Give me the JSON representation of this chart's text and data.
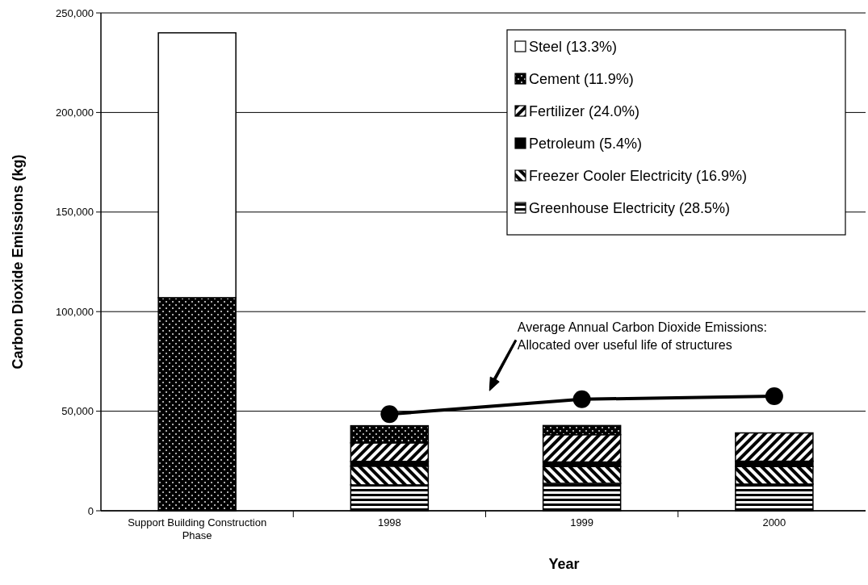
{
  "chart_data": {
    "type": "bar",
    "stacked": true,
    "xlabel": "Year",
    "ylabel": "Carbon Dioxide Emissions (kg)",
    "categories": [
      "Support Building Construction Phase",
      "1998",
      "1999",
      "2000"
    ],
    "ylim": [
      0,
      250000
    ],
    "yticks": [
      0,
      {
        "value": 50000,
        "label": "50,000"
      },
      {
        "value": 100000,
        "label": "100,000"
      },
      {
        "value": 150000,
        "label": "150,000"
      },
      {
        "value": 200000,
        "label": "200,000"
      },
      {
        "value": 250000,
        "label": "250,000"
      }
    ],
    "grid": "y",
    "legend": "top right",
    "series": [
      {
        "name": "Greenhouse Electricity (28.5%)",
        "color": "#000000",
        "values": [
          null,
          13000,
          13800,
          13400
        ]
      },
      {
        "name": "Freezer Cooler Electricity (16.9%)",
        "color": "#000000",
        "values": [
          null,
          9400,
          8400,
          8800
        ]
      },
      {
        "name": "Petroleum (5.4%)",
        "color": "#000000",
        "values": [
          null,
          2400,
          2300,
          2700
        ]
      },
      {
        "name": "Fertilizer (24.0%)",
        "color": "#000000",
        "values": [
          null,
          9300,
          13700,
          14200
        ]
      },
      {
        "name": "Cement (11.9%)",
        "color": "#000000",
        "values": [
          107000,
          8600,
          4600,
          null
        ]
      },
      {
        "name": "Steel (13.3%)",
        "color": "#ffffff",
        "values": [
          133000,
          null,
          null,
          null
        ]
      },
      {
        "type": "line",
        "color": "#000000",
        "marker": "circle",
        "values": [
          null,
          48500,
          56000,
          57500
        ]
      }
    ],
    "annotations": [
      "Average Annual Carbon Dioxide Emissions: Allocated over useful life of structures"
    ]
  }
}
